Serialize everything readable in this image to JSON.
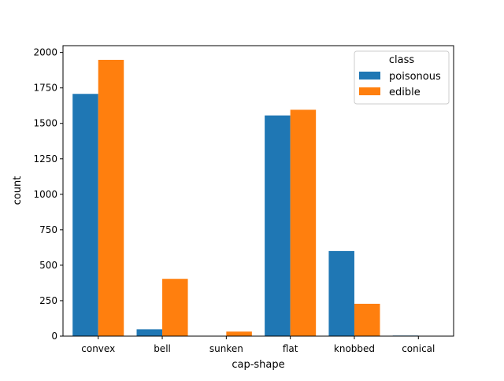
{
  "chart_data": {
    "type": "bar",
    "title": "",
    "xlabel": "cap-shape",
    "ylabel": "count",
    "categories": [
      "convex",
      "bell",
      "sunken",
      "flat",
      "knobbed",
      "conical"
    ],
    "series": [
      {
        "name": "poisonous",
        "values": [
          1708,
          48,
          0,
          1556,
          600,
          4
        ]
      },
      {
        "name": "edible",
        "values": [
          1948,
          404,
          32,
          1596,
          228,
          0
        ]
      }
    ],
    "ylim": [
      0,
      2048
    ],
    "yticks": [
      0,
      250,
      500,
      750,
      1000,
      1250,
      1500,
      1750,
      2000
    ],
    "grid": false,
    "legend": {
      "title": "class",
      "placement": "top-right"
    },
    "colors": {
      "poisonous": "#1f77b4",
      "edible": "#ff7f0e",
      "axis": "#000000",
      "legend_border": "#cccccc"
    }
  }
}
